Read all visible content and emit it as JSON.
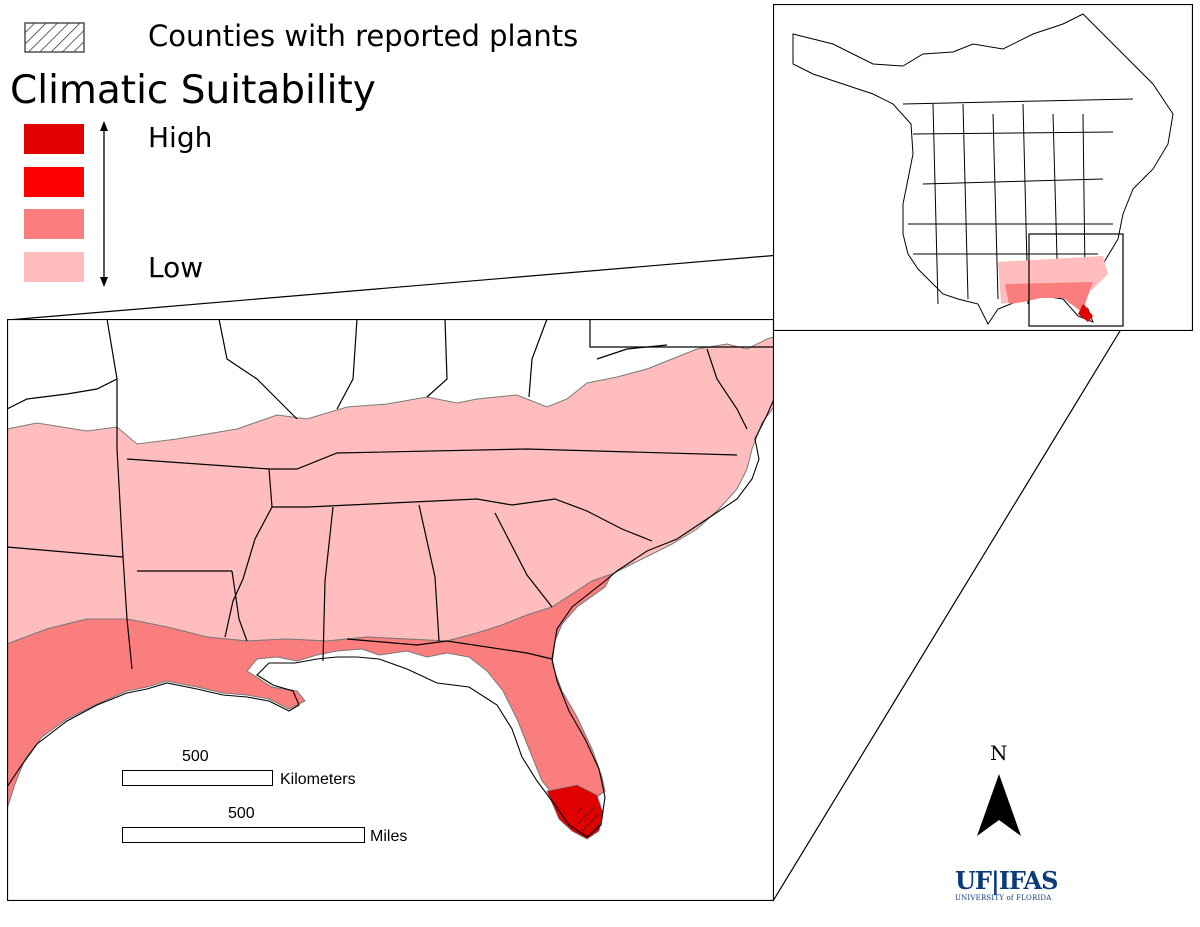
{
  "legend": {
    "hatch_label": "Counties with reported plants",
    "title": "Climatic Suitability",
    "high_label": "High",
    "low_label": "Low",
    "colors": [
      "#e00000",
      "#ff0000",
      "#fb7e7e",
      "#ffbdbd"
    ]
  },
  "scale_bars": {
    "km_value": "500",
    "km_unit": "Kilometers",
    "mi_value": "500",
    "mi_unit": "Miles"
  },
  "north_arrow": {
    "letter": "N"
  },
  "logo": {
    "main": "UF|IFAS",
    "sub": "UNIVERSITY of FLORIDA"
  },
  "colors": {
    "high": "#e00000",
    "mid_high": "#ff0000",
    "mid_low": "#fb7e7e",
    "low": "#ffbdbd",
    "boundary": "#000000",
    "suitability_edge": "#7a7a7a"
  }
}
